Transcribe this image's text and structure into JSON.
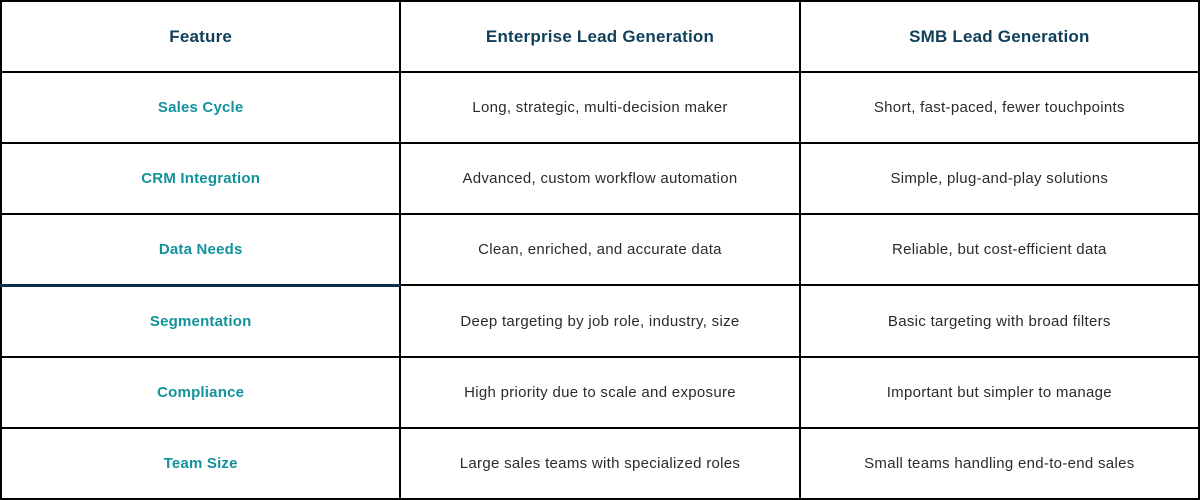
{
  "table": {
    "headers": {
      "feature": "Feature",
      "enterprise": "Enterprise Lead Generation",
      "smb": "SMB Lead Generation"
    },
    "rows": [
      {
        "feature": "Sales Cycle",
        "enterprise": "Long, strategic, multi-decision maker",
        "smb": "Short, fast-paced, fewer touchpoints"
      },
      {
        "feature": "CRM Integration",
        "enterprise": "Advanced, custom workflow automation",
        "smb": "Simple, plug-and-play solutions"
      },
      {
        "feature": "Data Needs",
        "enterprise": "Clean, enriched, and accurate data",
        "smb": "Reliable, but cost-efficient data"
      },
      {
        "feature": "Segmentation",
        "enterprise": "Deep targeting by job role, industry, size",
        "smb": "Basic targeting with broad filters"
      },
      {
        "feature": "Compliance",
        "enterprise": "High priority due to scale and exposure",
        "smb": "Important but simpler to manage"
      },
      {
        "feature": "Team Size",
        "enterprise": "Large sales teams with specialized roles",
        "smb": "Small teams handling end-to-end sales"
      }
    ]
  },
  "colors": {
    "header_text": "#103f5a",
    "feature_text": "#12929b",
    "body_text": "#2b2b2b",
    "border": "#000000",
    "accent_divider": "#0d2d4e"
  },
  "chart_data": {
    "type": "table",
    "title": "",
    "columns": [
      "Feature",
      "Enterprise Lead Generation",
      "SMB Lead Generation"
    ],
    "rows": [
      [
        "Sales Cycle",
        "Long, strategic, multi-decision maker",
        "Short, fast-paced, fewer touchpoints"
      ],
      [
        "CRM Integration",
        "Advanced, custom workflow automation",
        "Simple, plug-and-play solutions"
      ],
      [
        "Data Needs",
        "Clean, enriched, and accurate data",
        "Reliable, but cost-efficient data"
      ],
      [
        "Segmentation",
        "Deep targeting by job role, industry, size",
        "Basic targeting with broad filters"
      ],
      [
        "Compliance",
        "High priority due to scale and exposure",
        "Important but simpler to manage"
      ],
      [
        "Team Size",
        "Large sales teams with specialized roles",
        "Small teams handling end-to-end sales"
      ]
    ]
  }
}
